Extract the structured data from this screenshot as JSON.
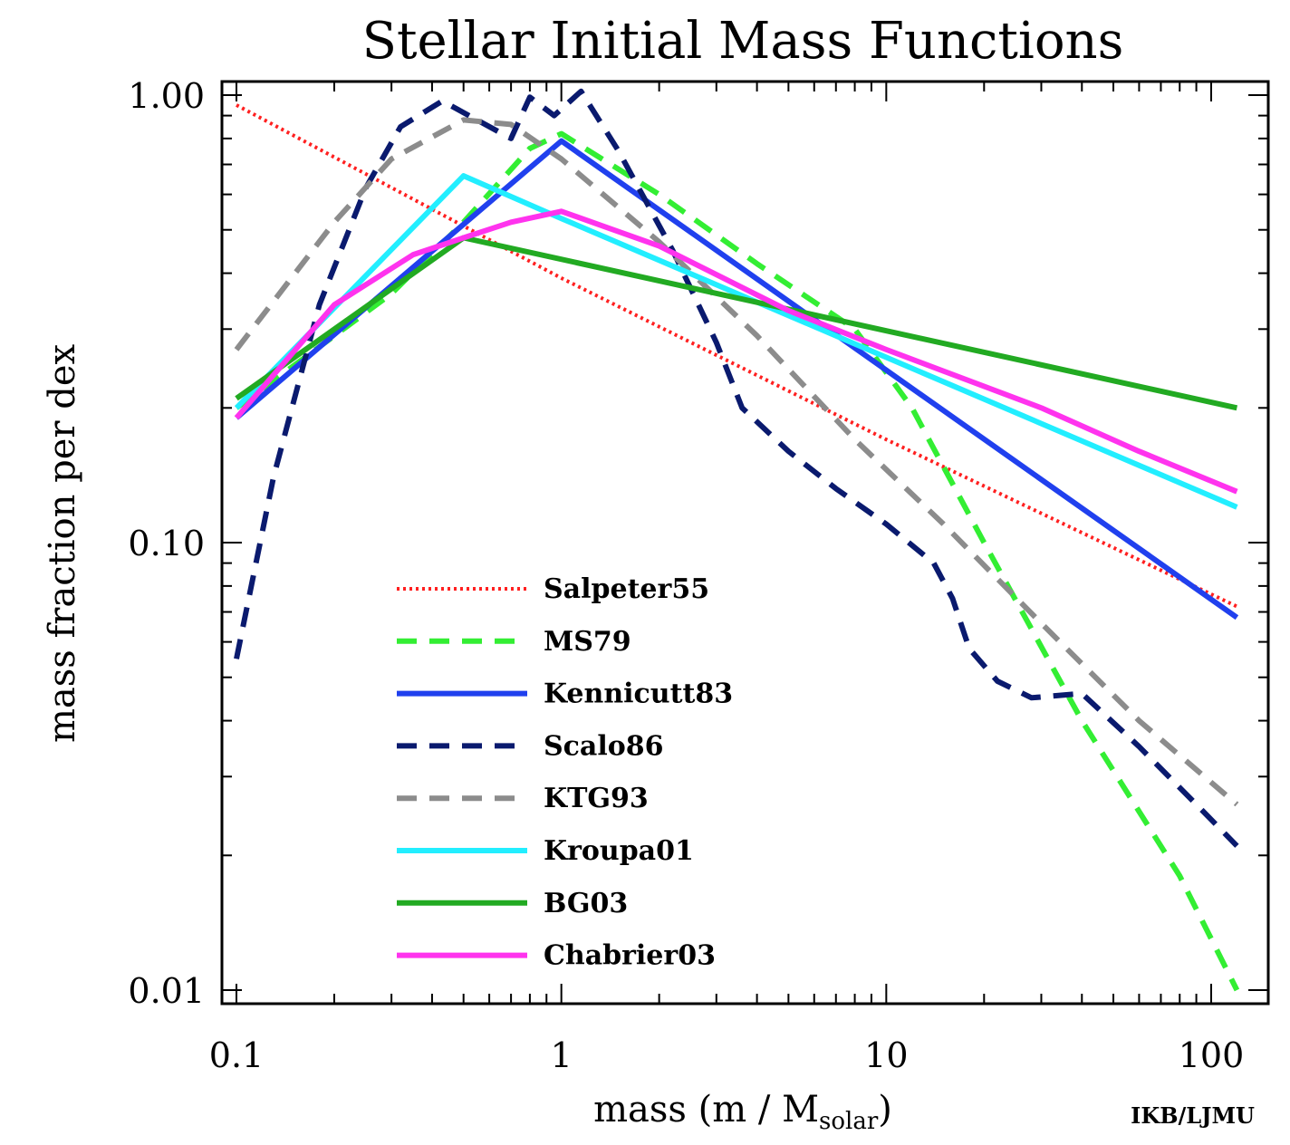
{
  "chart_data": {
    "type": "line",
    "title": "Stellar Initial Mass Functions",
    "xlabel_main": "mass (m / M",
    "xlabel_sub": "solar",
    "xlabel_end": ")",
    "ylabel": "mass fraction per dex",
    "credit": "IKB/LJMU",
    "x_scale": "log",
    "y_scale": "log",
    "xlim": [
      0.1,
      120
    ],
    "ylim": [
      0.01,
      1.0
    ],
    "x_ticks": [
      {
        "value": 0.1,
        "label": "0.1"
      },
      {
        "value": 1,
        "label": "1"
      },
      {
        "value": 10,
        "label": "10"
      },
      {
        "value": 100,
        "label": "100"
      }
    ],
    "y_ticks": [
      {
        "value": 0.01,
        "label": "0.01"
      },
      {
        "value": 0.1,
        "label": "0.10"
      },
      {
        "value": 1.0,
        "label": "1.00"
      }
    ],
    "grid": false,
    "legend_position": "lower-left",
    "series": [
      {
        "name": "Salpeter55",
        "color": "#ff2020",
        "style": "dotted",
        "points": [
          [
            0.1,
            0.95
          ],
          [
            1,
            0.39
          ],
          [
            10,
            0.17
          ],
          [
            120,
            0.072
          ]
        ]
      },
      {
        "name": "MS79",
        "color": "#33ee33",
        "style": "dashed",
        "points": [
          [
            0.1,
            0.2
          ],
          [
            0.3,
            0.36
          ],
          [
            0.5,
            0.52
          ],
          [
            0.8,
            0.76
          ],
          [
            1,
            0.82
          ],
          [
            2,
            0.6
          ],
          [
            4,
            0.42
          ],
          [
            8,
            0.3
          ],
          [
            12,
            0.2
          ],
          [
            20,
            0.1
          ],
          [
            40,
            0.04
          ],
          [
            80,
            0.018
          ],
          [
            120,
            0.01
          ]
        ]
      },
      {
        "name": "Kennicutt83",
        "color": "#2040ee",
        "style": "solid",
        "points": [
          [
            0.1,
            0.19
          ],
          [
            1,
            0.79
          ],
          [
            120,
            0.068
          ]
        ]
      },
      {
        "name": "Scalo86",
        "color": "#0a1a6e",
        "style": "dashed",
        "points": [
          [
            0.1,
            0.055
          ],
          [
            0.13,
            0.14
          ],
          [
            0.18,
            0.34
          ],
          [
            0.25,
            0.62
          ],
          [
            0.32,
            0.85
          ],
          [
            0.43,
            0.97
          ],
          [
            0.55,
            0.88
          ],
          [
            0.7,
            0.8
          ],
          [
            0.8,
            0.99
          ],
          [
            0.95,
            0.9
          ],
          [
            1.15,
            1.02
          ],
          [
            1.5,
            0.75
          ],
          [
            2.2,
            0.45
          ],
          [
            3,
            0.28
          ],
          [
            3.6,
            0.2
          ],
          [
            5,
            0.16
          ],
          [
            7,
            0.132
          ],
          [
            10,
            0.11
          ],
          [
            14,
            0.09
          ],
          [
            16,
            0.075
          ],
          [
            18,
            0.058
          ],
          [
            22,
            0.049
          ],
          [
            28,
            0.045
          ],
          [
            40,
            0.046
          ],
          [
            60,
            0.035
          ],
          [
            90,
            0.026
          ],
          [
            120,
            0.021
          ]
        ]
      },
      {
        "name": "KTG93",
        "color": "#8c8c8c",
        "style": "dashed",
        "points": [
          [
            0.1,
            0.27
          ],
          [
            0.2,
            0.52
          ],
          [
            0.3,
            0.72
          ],
          [
            0.5,
            0.88
          ],
          [
            0.7,
            0.86
          ],
          [
            1,
            0.72
          ],
          [
            2,
            0.47
          ],
          [
            4,
            0.29
          ],
          [
            8,
            0.17
          ],
          [
            15,
            0.11
          ],
          [
            30,
            0.066
          ],
          [
            60,
            0.04
          ],
          [
            120,
            0.026
          ]
        ]
      },
      {
        "name": "Kroupa01",
        "color": "#22eeff",
        "style": "solid",
        "points": [
          [
            0.1,
            0.2
          ],
          [
            0.5,
            0.66
          ],
          [
            1,
            0.53
          ],
          [
            120,
            0.12
          ]
        ]
      },
      {
        "name": "BG03",
        "color": "#22aa22",
        "style": "solid",
        "points": [
          [
            0.1,
            0.21
          ],
          [
            0.5,
            0.48
          ],
          [
            120,
            0.2
          ]
        ]
      },
      {
        "name": "Chabrier03",
        "color": "#ff33ee",
        "style": "solid",
        "points": [
          [
            0.1,
            0.19
          ],
          [
            0.2,
            0.34
          ],
          [
            0.35,
            0.44
          ],
          [
            0.5,
            0.48
          ],
          [
            0.7,
            0.52
          ],
          [
            1,
            0.55
          ],
          [
            2,
            0.46
          ],
          [
            5,
            0.33
          ],
          [
            10,
            0.27
          ],
          [
            30,
            0.2
          ],
          [
            60,
            0.16
          ],
          [
            120,
            0.13
          ]
        ]
      }
    ]
  }
}
